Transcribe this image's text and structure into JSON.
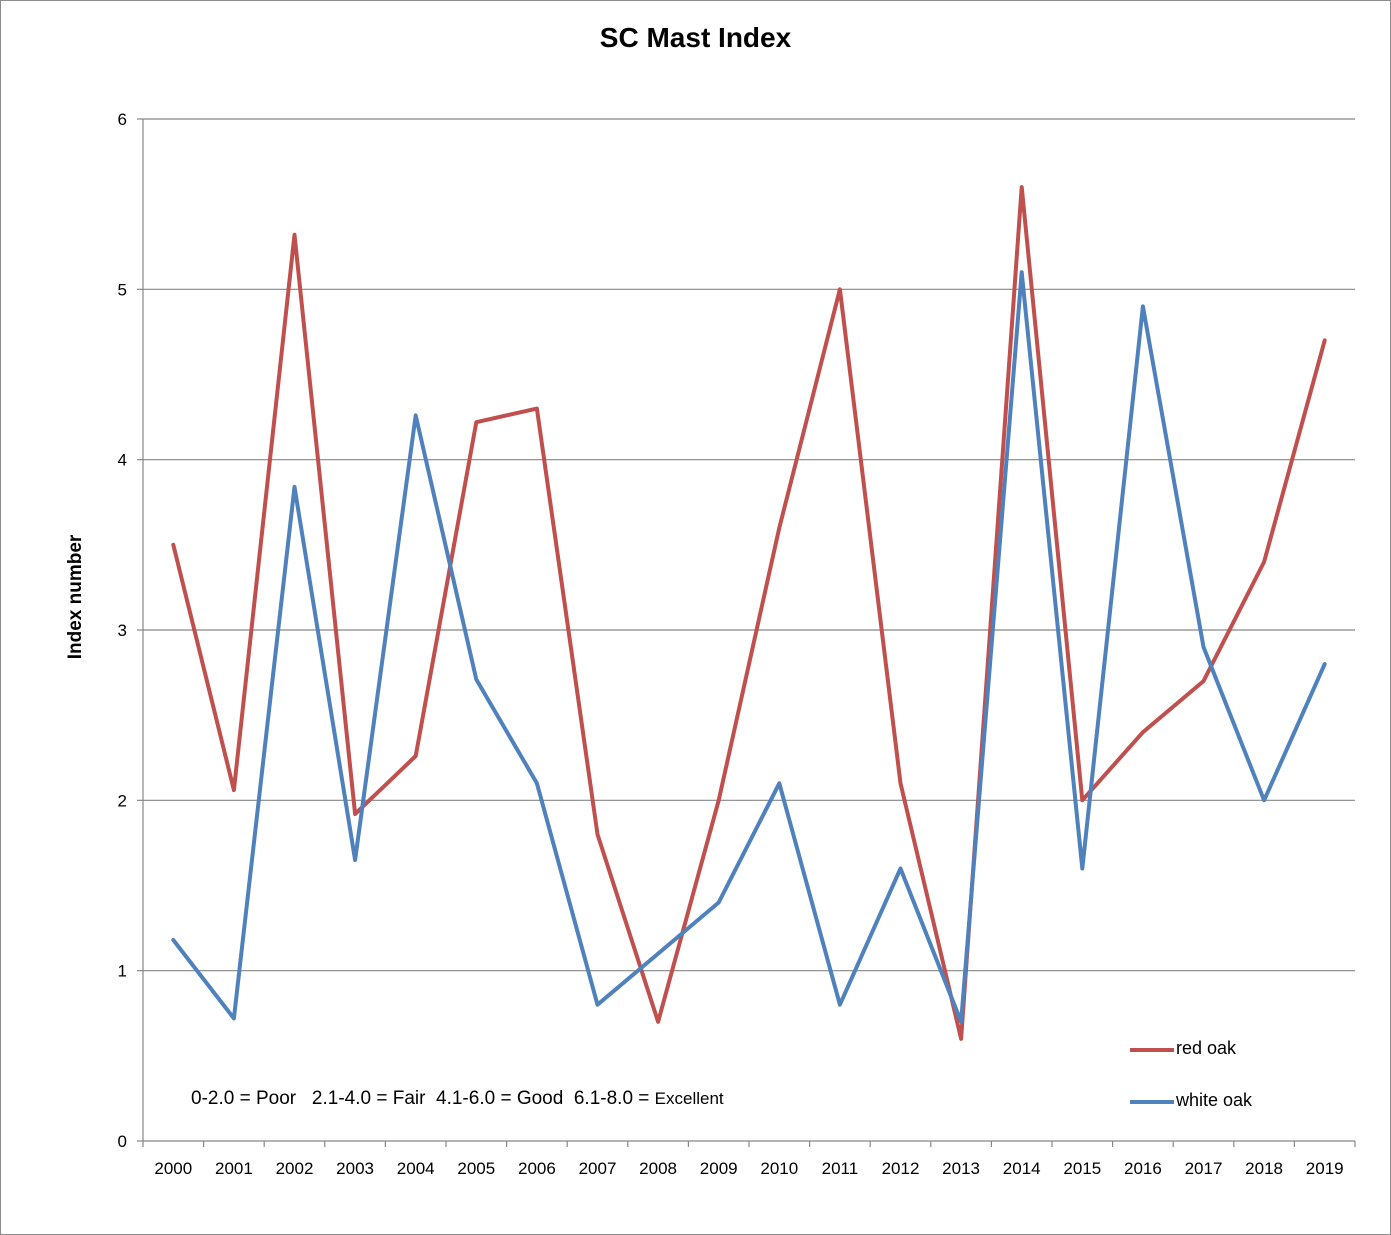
{
  "chart_data": {
    "type": "line",
    "title": "SC Mast Index",
    "xlabel": "",
    "ylabel": "Index number",
    "categories": [
      "2000",
      "2001",
      "2002",
      "2003",
      "2004",
      "2005",
      "2006",
      "2007",
      "2008",
      "2009",
      "2010",
      "2011",
      "2012",
      "2013",
      "2014",
      "2015",
      "2016",
      "2017",
      "2018",
      "2019"
    ],
    "series": [
      {
        "name": "red oak",
        "color": "#c0504d",
        "values": [
          3.5,
          2.06,
          5.32,
          1.92,
          2.26,
          4.22,
          4.3,
          1.8,
          0.7,
          2.0,
          3.6,
          5.0,
          2.1,
          0.6,
          5.6,
          2.0,
          2.4,
          2.7,
          3.4,
          4.7
        ]
      },
      {
        "name": "white oak",
        "color": "#4f81bd",
        "values": [
          1.18,
          0.72,
          3.84,
          1.65,
          4.26,
          2.71,
          2.1,
          0.8,
          1.1,
          1.4,
          2.1,
          0.8,
          1.6,
          0.7,
          5.1,
          1.6,
          4.9,
          2.9,
          2.0,
          2.8
        ]
      }
    ],
    "ylim": [
      0,
      6
    ],
    "yticks": [
      0,
      1,
      2,
      3,
      4,
      5,
      6
    ],
    "grid": true,
    "legend_position": "bottom-right",
    "annotation": {
      "main": "0-2.0 = Poor   2.1-4.0 = Fair  4.1-6.0 = Good  6.1-8.0 = ",
      "last": "Excellent"
    }
  }
}
